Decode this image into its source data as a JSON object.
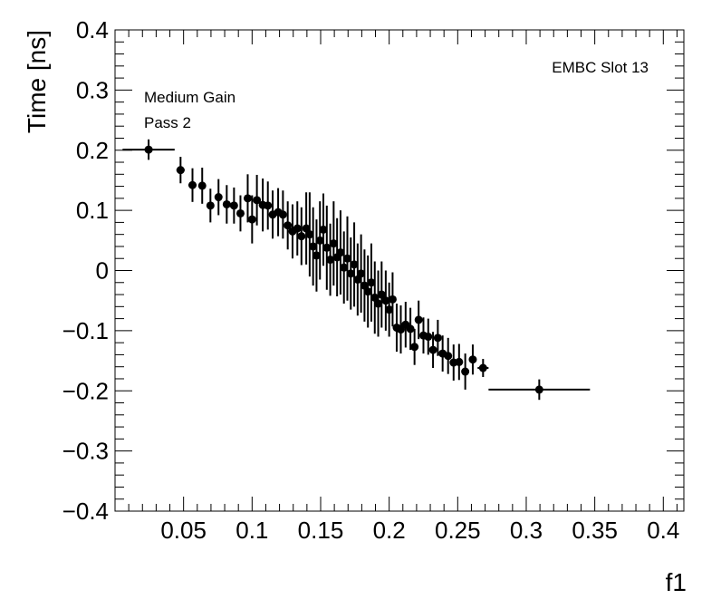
{
  "chart_data": {
    "type": "scatter",
    "xlabel": "f1",
    "ylabel": "Time [ns]",
    "xlim": [
      0.0,
      0.415
    ],
    "ylim": [
      -0.4,
      0.4
    ],
    "x_ticks": [
      0.05,
      0.1,
      0.15,
      0.2,
      0.25,
      0.3,
      0.35,
      0.4
    ],
    "x_tick_labels": [
      "0.05",
      "0.1",
      "0.15",
      "0.2",
      "0.25",
      "0.3",
      "0.35",
      "0.4"
    ],
    "y_ticks": [
      -0.4,
      -0.3,
      -0.2,
      -0.1,
      0,
      0.1,
      0.2,
      0.3,
      0.4
    ],
    "y_tick_labels": [
      "−0.4",
      "−0.3",
      "−0.2",
      "−0.1",
      "0",
      "0.1",
      "0.2",
      "0.3",
      "0.4"
    ],
    "annotations": {
      "top_right": "EMBC Slot 13",
      "line1": "Medium Gain",
      "line2": "Pass 2"
    },
    "grid": false,
    "points": [
      {
        "x": 0.0245,
        "y": 0.201,
        "xerr": [
          0.019,
          0.019
        ],
        "yerr": 0.017
      },
      {
        "x": 0.0478,
        "y": 0.167,
        "xerr": [
          0.003,
          0.003
        ],
        "yerr": 0.022
      },
      {
        "x": 0.0565,
        "y": 0.142,
        "xerr": [
          0.003,
          0.003
        ],
        "yerr": 0.028
      },
      {
        "x": 0.0636,
        "y": 0.141,
        "xerr": [
          0.0025,
          0.0025
        ],
        "yerr": 0.03
      },
      {
        "x": 0.0696,
        "y": 0.108,
        "xerr": [
          0.0025,
          0.0025
        ],
        "yerr": 0.028
      },
      {
        "x": 0.0755,
        "y": 0.122,
        "xerr": [
          0.0025,
          0.0025
        ],
        "yerr": 0.03
      },
      {
        "x": 0.0815,
        "y": 0.11,
        "xerr": [
          0.0025,
          0.0025
        ],
        "yerr": 0.032
      },
      {
        "x": 0.0868,
        "y": 0.108,
        "xerr": [
          0.0025,
          0.0025
        ],
        "yerr": 0.03
      },
      {
        "x": 0.0915,
        "y": 0.095,
        "xerr": [
          0.0025,
          0.0025
        ],
        "yerr": 0.03
      },
      {
        "x": 0.0968,
        "y": 0.12,
        "xerr": [
          0.0025,
          0.0025
        ],
        "yerr": 0.04
      },
      {
        "x": 0.1,
        "y": 0.085,
        "xerr": [
          0.002,
          0.002
        ],
        "yerr": 0.04
      },
      {
        "x": 0.1035,
        "y": 0.117,
        "xerr": [
          0.002,
          0.002
        ],
        "yerr": 0.042
      },
      {
        "x": 0.1078,
        "y": 0.109,
        "xerr": [
          0.002,
          0.002
        ],
        "yerr": 0.044
      },
      {
        "x": 0.1115,
        "y": 0.108,
        "xerr": [
          0.002,
          0.002
        ],
        "yerr": 0.04
      },
      {
        "x": 0.115,
        "y": 0.093,
        "xerr": [
          0.002,
          0.002
        ],
        "yerr": 0.04
      },
      {
        "x": 0.119,
        "y": 0.097,
        "xerr": [
          0.002,
          0.002
        ],
        "yerr": 0.04
      },
      {
        "x": 0.1225,
        "y": 0.093,
        "xerr": [
          0.002,
          0.002
        ],
        "yerr": 0.04
      },
      {
        "x": 0.126,
        "y": 0.075,
        "xerr": [
          0.002,
          0.002
        ],
        "yerr": 0.04
      },
      {
        "x": 0.1295,
        "y": 0.065,
        "xerr": [
          0.002,
          0.002
        ],
        "yerr": 0.045
      },
      {
        "x": 0.133,
        "y": 0.07,
        "xerr": [
          0.002,
          0.002
        ],
        "yerr": 0.045
      },
      {
        "x": 0.136,
        "y": 0.057,
        "xerr": [
          0.002,
          0.002
        ],
        "yerr": 0.048
      },
      {
        "x": 0.1395,
        "y": 0.07,
        "xerr": [
          0.002,
          0.002
        ],
        "yerr": 0.06
      },
      {
        "x": 0.142,
        "y": 0.06,
        "xerr": [
          0.0015,
          0.0015
        ],
        "yerr": 0.07
      },
      {
        "x": 0.1445,
        "y": 0.04,
        "xerr": [
          0.0015,
          0.0015
        ],
        "yerr": 0.065
      },
      {
        "x": 0.147,
        "y": 0.025,
        "xerr": [
          0.0015,
          0.0015
        ],
        "yerr": 0.06
      },
      {
        "x": 0.1495,
        "y": 0.05,
        "xerr": [
          0.0015,
          0.0015
        ],
        "yerr": 0.065
      },
      {
        "x": 0.152,
        "y": 0.068,
        "xerr": [
          0.0015,
          0.0015
        ],
        "yerr": 0.06
      },
      {
        "x": 0.1545,
        "y": 0.038,
        "xerr": [
          0.0015,
          0.0015
        ],
        "yerr": 0.07
      },
      {
        "x": 0.157,
        "y": 0.018,
        "xerr": [
          0.0015,
          0.0015
        ],
        "yerr": 0.06
      },
      {
        "x": 0.1595,
        "y": 0.045,
        "xerr": [
          0.0015,
          0.0015
        ],
        "yerr": 0.07
      },
      {
        "x": 0.162,
        "y": 0.022,
        "xerr": [
          0.0015,
          0.0015
        ],
        "yerr": 0.065
      },
      {
        "x": 0.1645,
        "y": 0.03,
        "xerr": [
          0.0015,
          0.0015
        ],
        "yerr": 0.07
      },
      {
        "x": 0.167,
        "y": 0.005,
        "xerr": [
          0.0015,
          0.0015
        ],
        "yerr": 0.06
      },
      {
        "x": 0.1695,
        "y": 0.02,
        "xerr": [
          0.0015,
          0.0015
        ],
        "yerr": 0.07
      },
      {
        "x": 0.172,
        "y": -0.005,
        "xerr": [
          0.0015,
          0.0015
        ],
        "yerr": 0.06
      },
      {
        "x": 0.1745,
        "y": 0.01,
        "xerr": [
          0.0015,
          0.0015
        ],
        "yerr": 0.07
      },
      {
        "x": 0.177,
        "y": -0.015,
        "xerr": [
          0.0015,
          0.0015
        ],
        "yerr": 0.06
      },
      {
        "x": 0.1795,
        "y": -0.005,
        "xerr": [
          0.0015,
          0.0015
        ],
        "yerr": 0.065
      },
      {
        "x": 0.182,
        "y": -0.025,
        "xerr": [
          0.0015,
          0.0015
        ],
        "yerr": 0.06
      },
      {
        "x": 0.1845,
        "y": -0.035,
        "xerr": [
          0.0015,
          0.0015
        ],
        "yerr": 0.06
      },
      {
        "x": 0.187,
        "y": -0.02,
        "xerr": [
          0.0015,
          0.0015
        ],
        "yerr": 0.065
      },
      {
        "x": 0.1895,
        "y": -0.045,
        "xerr": [
          0.0015,
          0.0015
        ],
        "yerr": 0.06
      },
      {
        "x": 0.192,
        "y": -0.055,
        "xerr": [
          0.0015,
          0.0015
        ],
        "yerr": 0.055
      },
      {
        "x": 0.1945,
        "y": -0.04,
        "xerr": [
          0.0015,
          0.0015
        ],
        "yerr": 0.055
      },
      {
        "x": 0.1975,
        "y": -0.05,
        "xerr": [
          0.0015,
          0.0015
        ],
        "yerr": 0.05
      },
      {
        "x": 0.2,
        "y": -0.065,
        "xerr": [
          0.0015,
          0.0015
        ],
        "yerr": 0.045
      },
      {
        "x": 0.2025,
        "y": -0.048,
        "xerr": [
          0.0015,
          0.0015
        ],
        "yerr": 0.045
      },
      {
        "x": 0.2055,
        "y": -0.095,
        "xerr": [
          0.0015,
          0.0015
        ],
        "yerr": 0.04
      },
      {
        "x": 0.2085,
        "y": -0.098,
        "xerr": [
          0.0015,
          0.0015
        ],
        "yerr": 0.04
      },
      {
        "x": 0.212,
        "y": -0.09,
        "xerr": [
          0.0015,
          0.0015
        ],
        "yerr": 0.038
      },
      {
        "x": 0.2155,
        "y": -0.097,
        "xerr": [
          0.0015,
          0.0015
        ],
        "yerr": 0.035
      },
      {
        "x": 0.2185,
        "y": -0.127,
        "xerr": [
          0.0015,
          0.0015
        ],
        "yerr": 0.03
      },
      {
        "x": 0.2215,
        "y": -0.082,
        "xerr": [
          0.0015,
          0.0015
        ],
        "yerr": 0.032
      },
      {
        "x": 0.225,
        "y": -0.108,
        "xerr": [
          0.0015,
          0.0015
        ],
        "yerr": 0.03
      },
      {
        "x": 0.2285,
        "y": -0.11,
        "xerr": [
          0.0015,
          0.0015
        ],
        "yerr": 0.03
      },
      {
        "x": 0.232,
        "y": -0.132,
        "xerr": [
          0.0015,
          0.0015
        ],
        "yerr": 0.03
      },
      {
        "x": 0.2355,
        "y": -0.112,
        "xerr": [
          0.0015,
          0.0015
        ],
        "yerr": 0.03
      },
      {
        "x": 0.239,
        "y": -0.138,
        "xerr": [
          0.0015,
          0.0015
        ],
        "yerr": 0.03
      },
      {
        "x": 0.243,
        "y": -0.142,
        "xerr": [
          0.0015,
          0.0015
        ],
        "yerr": 0.03
      },
      {
        "x": 0.247,
        "y": -0.153,
        "xerr": [
          0.0015,
          0.0015
        ],
        "yerr": 0.03
      },
      {
        "x": 0.251,
        "y": -0.152,
        "xerr": [
          0.0015,
          0.0015
        ],
        "yerr": 0.03
      },
      {
        "x": 0.2555,
        "y": -0.168,
        "xerr": [
          0.002,
          0.002
        ],
        "yerr": 0.03
      },
      {
        "x": 0.261,
        "y": -0.148,
        "xerr": [
          0.002,
          0.002
        ],
        "yerr": 0.025
      },
      {
        "x": 0.2685,
        "y": -0.162,
        "xerr": [
          0.004,
          0.004
        ],
        "yerr": 0.015
      },
      {
        "x": 0.3095,
        "y": -0.198,
        "xerr": [
          0.037,
          0.037
        ],
        "yerr": 0.017
      }
    ]
  }
}
